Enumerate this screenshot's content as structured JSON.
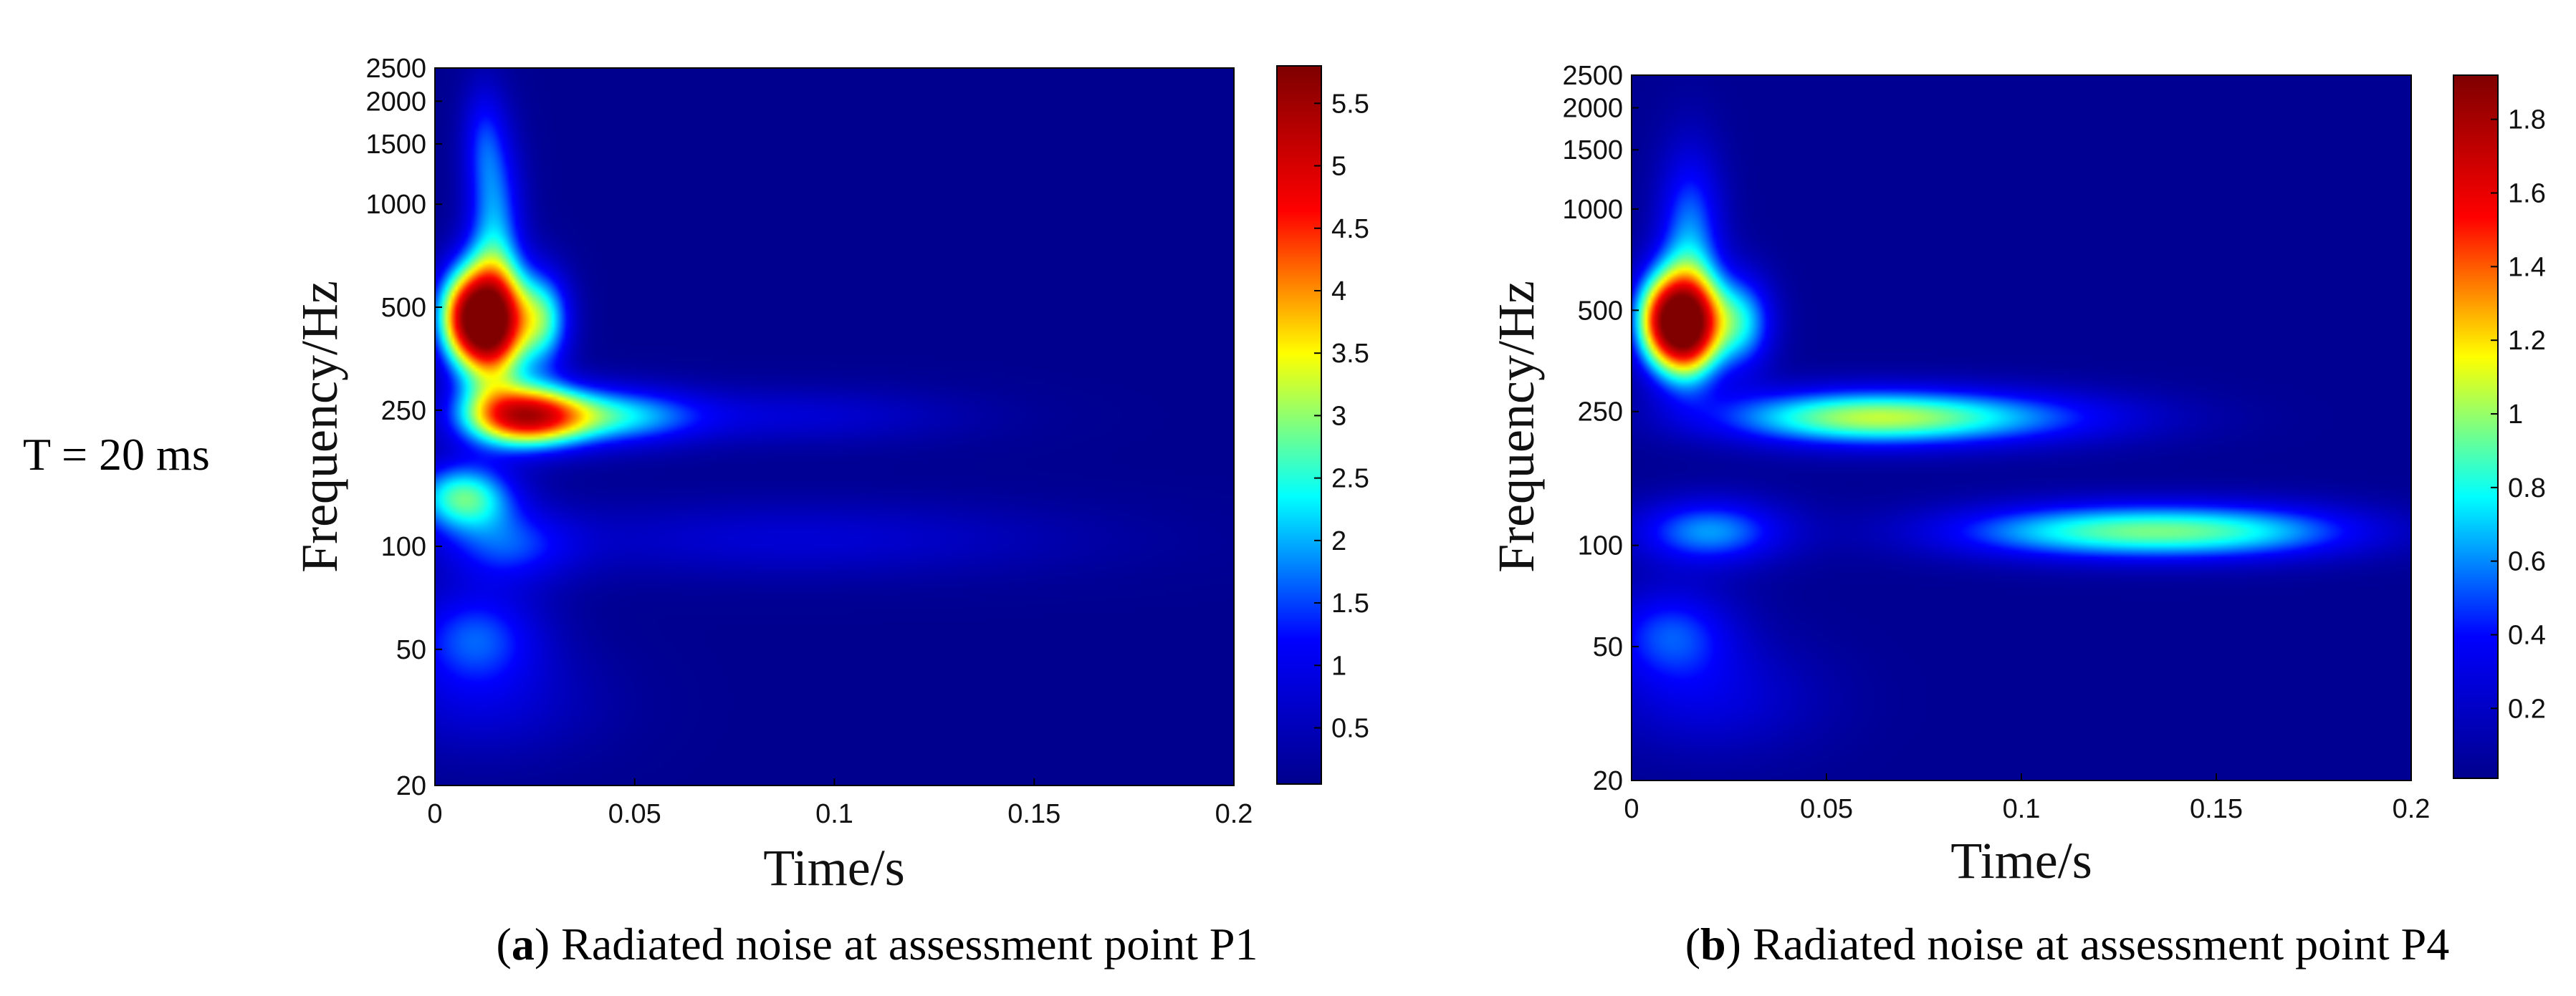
{
  "row_label": "T = 20 ms",
  "colormap": [
    "#00008f",
    "#0000ff",
    "#00ffff",
    "#ffff00",
    "#ff0000",
    "#800000"
  ],
  "chart_data": [
    {
      "type": "heatmap",
      "id": "a",
      "caption_letter": "a",
      "caption_text": ") Radiated noise at assessment point P1",
      "xlabel": "Time/s",
      "ylabel": "Frequency/Hz",
      "xlim": [
        0,
        0.2
      ],
      "ylim": [
        20,
        2500
      ],
      "yscale": "log",
      "xticks": [
        0,
        0.05,
        0.1,
        0.15,
        0.2
      ],
      "xtick_labels": [
        "0",
        "0.05",
        "0.1",
        "0.15",
        "0.2"
      ],
      "yticks": [
        20,
        50,
        100,
        250,
        500,
        1000,
        1500,
        2000,
        2500
      ],
      "ytick_labels": [
        "20",
        "50",
        "100",
        "250",
        "500",
        "1000",
        "1500",
        "2000",
        "2500"
      ],
      "colorbar_range": [
        0.05,
        5.8
      ],
      "colorbar_ticks": [
        0.5,
        1,
        1.5,
        2,
        2.5,
        3,
        3.5,
        4,
        4.5,
        5,
        5.5
      ],
      "colorbar_tick_labels": [
        "0.5",
        "1",
        "1.5",
        "2",
        "2.5",
        "3",
        "3.5",
        "4",
        "4.5",
        "5",
        "5.5"
      ],
      "background_value": 0.05,
      "hotspots": [
        {
          "t": 0.014,
          "f": 450,
          "value": 5.8,
          "st": 0.006,
          "sf": 0.12
        },
        {
          "t": 0.006,
          "f": 470,
          "value": 2.6,
          "st": 0.005,
          "sf": 0.1
        },
        {
          "t": 0.027,
          "f": 460,
          "value": 2.4,
          "st": 0.005,
          "sf": 0.1
        },
        {
          "t": 0.022,
          "f": 240,
          "value": 4.6,
          "st": 0.011,
          "sf": 0.065
        },
        {
          "t": 0.045,
          "f": 240,
          "value": 1.9,
          "st": 0.015,
          "sf": 0.06
        },
        {
          "t": 0.09,
          "f": 240,
          "value": 0.7,
          "st": 0.03,
          "sf": 0.06
        },
        {
          "t": 0.007,
          "f": 140,
          "value": 2.6,
          "st": 0.009,
          "sf": 0.07
        },
        {
          "t": 0.015,
          "f": 900,
          "value": 1.7,
          "st": 0.005,
          "sf": 0.18
        },
        {
          "t": 0.012,
          "f": 1600,
          "value": 0.9,
          "st": 0.004,
          "sf": 0.12
        },
        {
          "t": 0.018,
          "f": 100,
          "value": 1.2,
          "st": 0.012,
          "sf": 0.08
        },
        {
          "t": 0.09,
          "f": 105,
          "value": 0.7,
          "st": 0.05,
          "sf": 0.08
        },
        {
          "t": 0.01,
          "f": 55,
          "value": 1.4,
          "st": 0.012,
          "sf": 0.1
        },
        {
          "t": 0.012,
          "f": 35,
          "value": 0.7,
          "st": 0.02,
          "sf": 0.12
        }
      ]
    },
    {
      "type": "heatmap",
      "id": "b",
      "caption_letter": "b",
      "caption_text": ") Radiated noise at assessment point P4",
      "xlabel": "Time/s",
      "ylabel": "Frequency/Hz",
      "xlim": [
        0,
        0.2
      ],
      "ylim": [
        20,
        2500
      ],
      "yscale": "log",
      "xticks": [
        0,
        0.05,
        0.1,
        0.15,
        0.2
      ],
      "xtick_labels": [
        "0",
        "0.05",
        "0.1",
        "0.15",
        "0.2"
      ],
      "yticks": [
        20,
        50,
        100,
        250,
        500,
        1000,
        1500,
        2000,
        2500
      ],
      "ytick_labels": [
        "20",
        "50",
        "100",
        "250",
        "500",
        "1000",
        "1500",
        "2000",
        "2500"
      ],
      "colorbar_range": [
        0.01,
        1.92
      ],
      "colorbar_ticks": [
        0.2,
        0.4,
        0.6,
        0.8,
        1,
        1.2,
        1.4,
        1.6,
        1.8
      ],
      "colorbar_tick_labels": [
        "0.2",
        "0.4",
        "0.6",
        "0.8",
        "1",
        "1.2",
        "1.4",
        "1.6",
        "1.8"
      ],
      "background_value": 0.02,
      "hotspots": [
        {
          "t": 0.014,
          "f": 450,
          "value": 1.9,
          "st": 0.006,
          "sf": 0.11
        },
        {
          "t": 0.006,
          "f": 470,
          "value": 0.75,
          "st": 0.005,
          "sf": 0.1
        },
        {
          "t": 0.028,
          "f": 460,
          "value": 0.7,
          "st": 0.006,
          "sf": 0.1
        },
        {
          "t": 0.015,
          "f": 850,
          "value": 0.55,
          "st": 0.006,
          "sf": 0.18
        },
        {
          "t": 0.055,
          "f": 240,
          "value": 0.75,
          "st": 0.025,
          "sf": 0.06
        },
        {
          "t": 0.09,
          "f": 240,
          "value": 0.5,
          "st": 0.03,
          "sf": 0.06
        },
        {
          "t": 0.02,
          "f": 110,
          "value": 0.6,
          "st": 0.014,
          "sf": 0.07
        },
        {
          "t": 0.12,
          "f": 110,
          "value": 0.75,
          "st": 0.03,
          "sf": 0.06
        },
        {
          "t": 0.16,
          "f": 110,
          "value": 0.45,
          "st": 0.025,
          "sf": 0.06
        },
        {
          "t": 0.01,
          "f": 55,
          "value": 0.45,
          "st": 0.012,
          "sf": 0.1
        },
        {
          "t": 0.02,
          "f": 35,
          "value": 0.25,
          "st": 0.02,
          "sf": 0.12
        }
      ]
    }
  ]
}
